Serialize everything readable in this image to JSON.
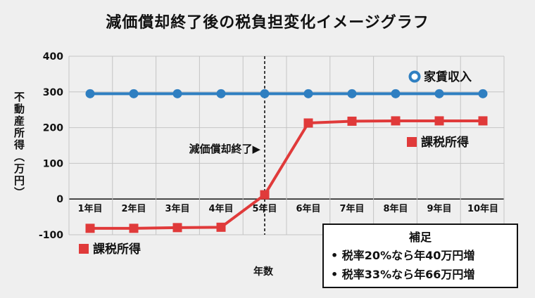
{
  "chart_data": {
    "type": "line",
    "title": "減価償却終了後の税負担変化イメージグラフ",
    "xlabel": "年数",
    "ylabel": "不動産所得（万円）",
    "categories": [
      "1年目",
      "2年目",
      "3年目",
      "4年目",
      "5年目",
      "6年目",
      "7年目",
      "8年目",
      "9年目",
      "10年目"
    ],
    "ylim": [
      -100,
      400
    ],
    "yticks": [
      "400",
      "300",
      "200",
      "100",
      "0",
      "-100"
    ],
    "grid": true,
    "series": [
      {
        "name": "家賃収入",
        "color": "#2f7fc1",
        "marker": "circle",
        "values": [
          295,
          295,
          295,
          295,
          295,
          295,
          295,
          295,
          295,
          295
        ]
      },
      {
        "name": "課税所得",
        "color": "#e03a3a",
        "marker": "square",
        "values": [
          -82,
          -82,
          -80,
          -79,
          12,
          213,
          218,
          219,
          219,
          219
        ]
      }
    ],
    "annotations": {
      "depreciation_end": {
        "label": "減価償却終了▶",
        "x": "5年目"
      },
      "income_label": "家賃収入",
      "taxable_label_top": "課税所得",
      "taxable_label_bottom": "課税所得"
    }
  },
  "note": {
    "title": "補足",
    "lines": [
      "• 税率20%なら年40万円増",
      "• 税率33%なら年66万円増"
    ]
  }
}
